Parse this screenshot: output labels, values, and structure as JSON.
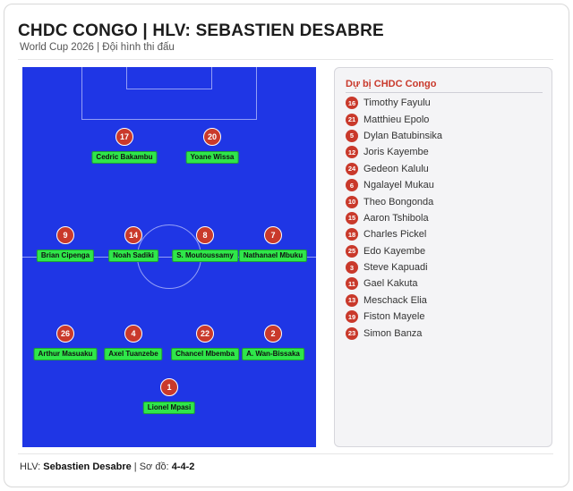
{
  "header": {
    "title": "CHDC CONGO | HLV: SEBASTIEN DESABRE",
    "subtitle": "World Cup 2026 | Đội hình thi đấu"
  },
  "colors": {
    "pitch": "#1f36e5",
    "number_badge": "#c9392b",
    "name_label": "#2fe64a",
    "bench_title": "#c9392b"
  },
  "pitch": {
    "players": [
      {
        "number": "17",
        "name": "Cedric Bakambu"
      },
      {
        "number": "20",
        "name": "Yoane Wissa"
      },
      {
        "number": "9",
        "name": "Brian Cipenga"
      },
      {
        "number": "14",
        "name": "Noah Sadiki"
      },
      {
        "number": "8",
        "name": "S. Moutoussamy"
      },
      {
        "number": "7",
        "name": "Nathanael Mbuku"
      },
      {
        "number": "26",
        "name": "Arthur Masuaku"
      },
      {
        "number": "4",
        "name": "Axel Tuanzebe"
      },
      {
        "number": "22",
        "name": "Chancel Mbemba"
      },
      {
        "number": "2",
        "name": "A. Wan-Bissaka"
      },
      {
        "number": "1",
        "name": "Lionel Mpasi"
      }
    ]
  },
  "bench": {
    "title": "Dự bị CHDC Congo",
    "players": [
      {
        "number": "16",
        "name": "Timothy Fayulu"
      },
      {
        "number": "21",
        "name": "Matthieu Epolo"
      },
      {
        "number": "5",
        "name": "Dylan Batubinsika"
      },
      {
        "number": "12",
        "name": "Joris Kayembe"
      },
      {
        "number": "24",
        "name": "Gedeon Kalulu"
      },
      {
        "number": "6",
        "name": "Ngalayel Mukau"
      },
      {
        "number": "10",
        "name": "Theo Bongonda"
      },
      {
        "number": "15",
        "name": "Aaron Tshibola"
      },
      {
        "number": "18",
        "name": "Charles Pickel"
      },
      {
        "number": "25",
        "name": "Edo Kayembe"
      },
      {
        "number": "3",
        "name": "Steve Kapuadi"
      },
      {
        "number": "11",
        "name": "Gael Kakuta"
      },
      {
        "number": "13",
        "name": "Meschack Elia"
      },
      {
        "number": "19",
        "name": "Fiston Mayele"
      },
      {
        "number": "23",
        "name": "Simon Banza"
      }
    ]
  },
  "footer": {
    "coach_label": "HLV:",
    "coach_name": "Sebastien Desabre",
    "formation_label": "Sơ đồ:",
    "formation": "4-4-2"
  }
}
